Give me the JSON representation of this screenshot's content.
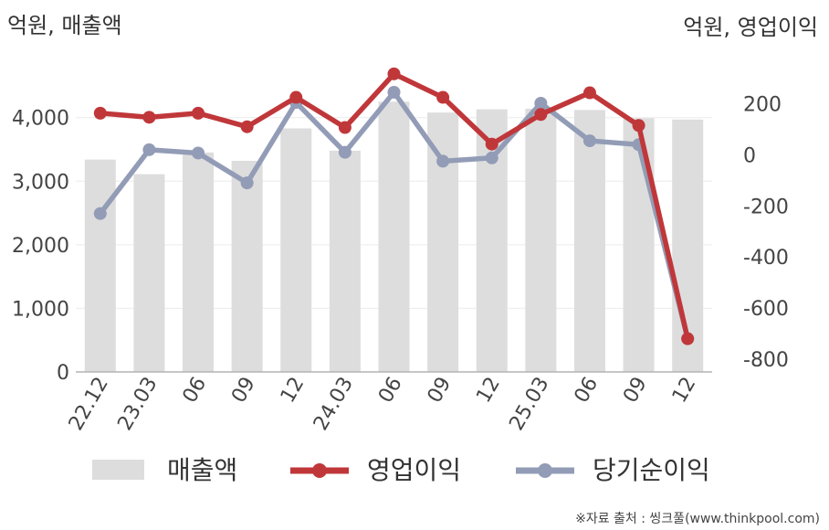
{
  "chart_data": {
    "type": "bar+line",
    "categories": [
      "22.12",
      "23.03",
      "06",
      "09",
      "12",
      "24.03",
      "06",
      "09",
      "12",
      "25.03",
      "06",
      "09",
      "12"
    ],
    "left_axis": {
      "unit_label": "억원, 매출액",
      "ticks": [
        0,
        1000,
        2000,
        3000,
        4000
      ],
      "tick_labels": [
        "0",
        "1,000",
        "2,000",
        "3,000",
        "4,000"
      ],
      "range": [
        0,
        4700
      ]
    },
    "right_axis": {
      "unit_label": "억원, 영업이익",
      "ticks": [
        -800,
        -600,
        -400,
        -200,
        0,
        200
      ],
      "tick_labels": [
        "-800",
        "-600",
        "-400",
        "-200",
        "0",
        "200"
      ],
      "range": [
        -850,
        320
      ]
    },
    "series": [
      {
        "name": "매출액",
        "type": "bar",
        "axis": "left",
        "color": "#dddddd",
        "values": [
          3340,
          3110,
          3450,
          3320,
          3830,
          3480,
          4250,
          4080,
          4130,
          4140,
          4120,
          3990,
          3970
        ]
      },
      {
        "name": "영업이익",
        "type": "line",
        "axis": "right",
        "color": "#c0373a",
        "values": [
          163,
          147,
          163,
          110,
          225,
          107,
          317,
          225,
          42,
          158,
          243,
          115,
          -720
        ]
      },
      {
        "name": "당기순이익",
        "type": "line",
        "axis": "right",
        "color": "#929cb6",
        "values": [
          -230,
          20,
          7,
          -110,
          205,
          10,
          245,
          -25,
          -12,
          202,
          55,
          40,
          -720
        ]
      }
    ],
    "grid": true,
    "legend_position": "bottom",
    "source": "※자료 출처 : 씽크풀(www.thinkpool.com)"
  }
}
